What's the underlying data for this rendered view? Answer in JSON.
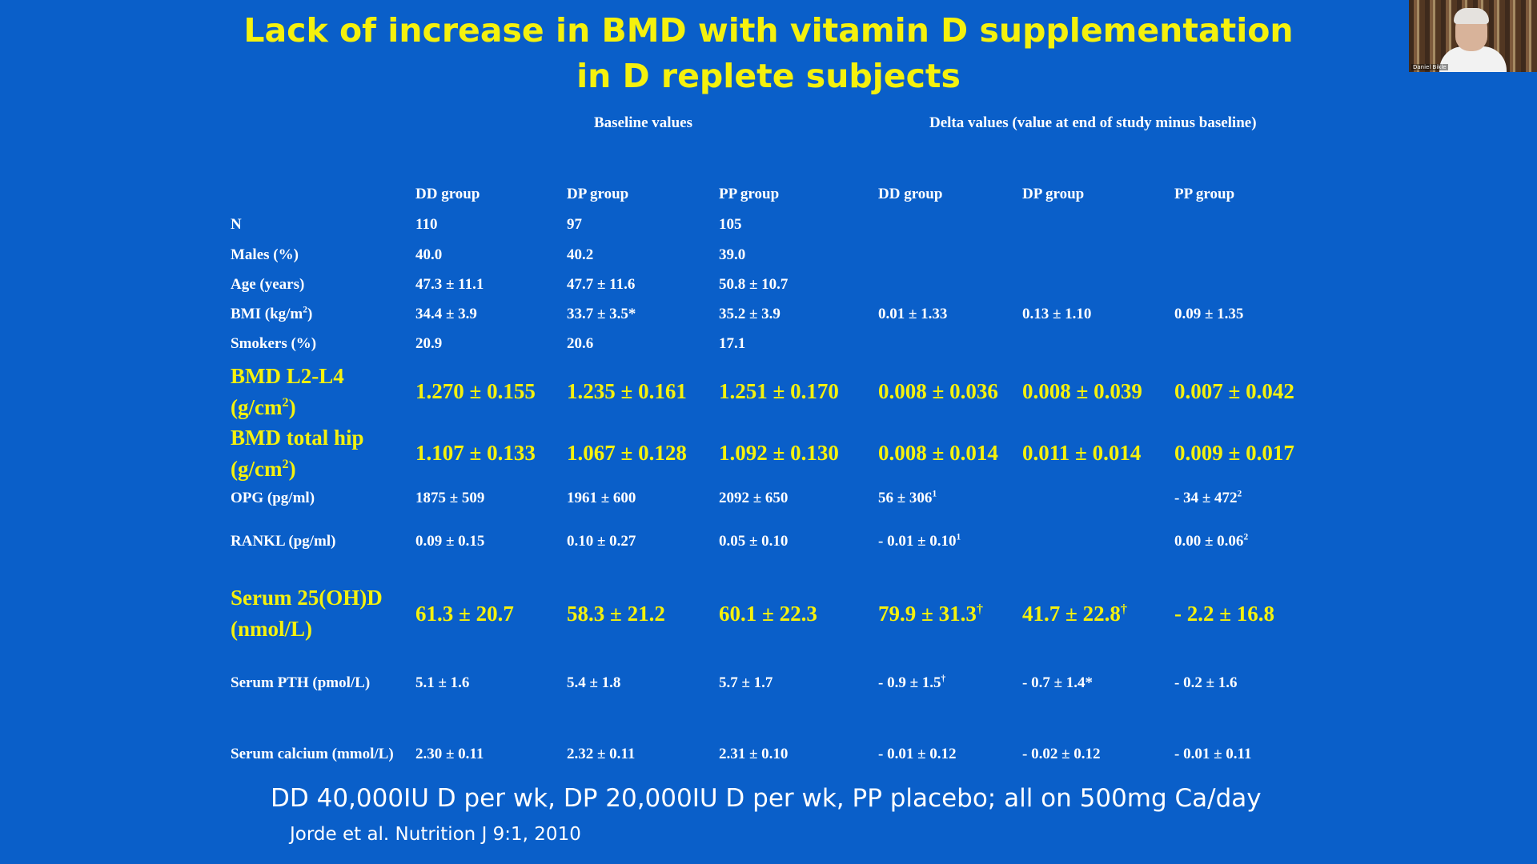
{
  "slide": {
    "title": "Lack of increase in BMD with vitamin D supplementation in D replete subjects",
    "baseline_header": "Baseline values",
    "delta_header": "Delta values (value at end of study minus baseline)",
    "columns": [
      "DD group",
      "DP group",
      "PP group",
      "DD group",
      "DP group",
      "PP group"
    ],
    "footnote": "DD 40,000IU D per wk, DP 20,000IU D per wk, PP placebo; all on 500mg Ca/day",
    "citation": "Jorde et al. Nutrition J 9:1, 2010"
  },
  "rows": {
    "n": {
      "label": "N",
      "c1": "110",
      "c2": "97",
      "c3": "105",
      "c4": "",
      "c5": "",
      "c6": ""
    },
    "males": {
      "label": "Males (%)",
      "c1": "40.0",
      "c2": "40.2",
      "c3": "39.0",
      "c4": "",
      "c5": "",
      "c6": ""
    },
    "age": {
      "label": "Age (years)",
      "c1": "47.3 ± 11.1",
      "c2": "47.7 ± 11.6",
      "c3": "50.8 ± 10.7",
      "c4": "",
      "c5": "",
      "c6": ""
    },
    "bmi": {
      "label": "BMI (kg/m",
      "label_sup": "2",
      "label_end": ")",
      "c1": "34.4 ± 3.9",
      "c2": "33.7 ± 3.5*",
      "c3": "35.2 ± 3.9",
      "c4": "0.01 ± 1.33",
      "c5": "0.13 ± 1.10",
      "c6": "0.09 ± 1.35"
    },
    "smokers": {
      "label": "Smokers (%)",
      "c1": "20.9",
      "c2": "20.6",
      "c3": "17.1",
      "c4": "",
      "c5": "",
      "c6": ""
    },
    "bmd_l": {
      "label": "BMD L2-L4 (g/cm",
      "label_sup": "2",
      "label_end": ")",
      "c1": "1.270 ± 0.155",
      "c2": "1.235 ± 0.161",
      "c3": "1.251 ± 0.170",
      "c4": "0.008 ± 0.036",
      "c5": "0.008 ± 0.039",
      "c6": "0.007 ± 0.042"
    },
    "bmd_h": {
      "label": "BMD total hip (g/cm",
      "label_sup": "2",
      "label_end": ")",
      "c1": "1.107 ± 0.133",
      "c2": "1.067 ± 0.128",
      "c3": "1.092 ± 0.130",
      "c4": "0.008 ± 0.014",
      "c5": "0.011 ± 0.014",
      "c6": "0.009 ± 0.017"
    },
    "opg": {
      "label": "OPG (pg/ml)",
      "c1": "1875 ± 509",
      "c2": "1961 ± 600",
      "c3": "2092 ± 650",
      "c4": "56 ± 306",
      "c4_sup": "1",
      "c5": "",
      "c6": "- 34 ± 472",
      "c6_sup": "2"
    },
    "rankl": {
      "label": "RANKL (pg/ml)",
      "c1": "0.09 ± 0.15",
      "c2": "0.10 ± 0.27",
      "c3": "0.05 ± 0.10",
      "c4": "- 0.01 ± 0.10",
      "c4_sup": "1",
      "c5": "",
      "c6": "0.00 ± 0.06",
      "c6_sup": "2"
    },
    "s25": {
      "label": "Serum 25(OH)D (nmol/L)",
      "c1": "61.3 ± 20.7",
      "c2": "58.3 ± 21.2",
      "c3": "60.1 ± 22.3",
      "c4": "79.9 ± 31.3",
      "c4_sup": "†",
      "c5": "41.7 ± 22.8",
      "c5_sup": "†",
      "c6": "- 2.2 ± 16.8"
    },
    "pth": {
      "label": "Serum PTH (pmol/L)",
      "c1": "5.1 ± 1.6",
      "c2": "5.4 ± 1.8",
      "c3": "5.7 ± 1.7",
      "c4": "- 0.9 ± 1.5",
      "c4_sup": "†",
      "c5": "- 0.7 ± 1.4*",
      "c6": "- 0.2 ± 1.6"
    },
    "ca": {
      "label": "Serum calcium (mmol/L)",
      "c1": "2.30 ± 0.11",
      "c2": "2.32 ± 0.11",
      "c3": "2.31 ± 0.10",
      "c4": "- 0.01 ± 0.12",
      "c5": "- 0.02 ± 0.12",
      "c6": "- 0.01 ± 0.11"
    }
  },
  "webcam": {
    "name": "Daniel Bikle"
  }
}
